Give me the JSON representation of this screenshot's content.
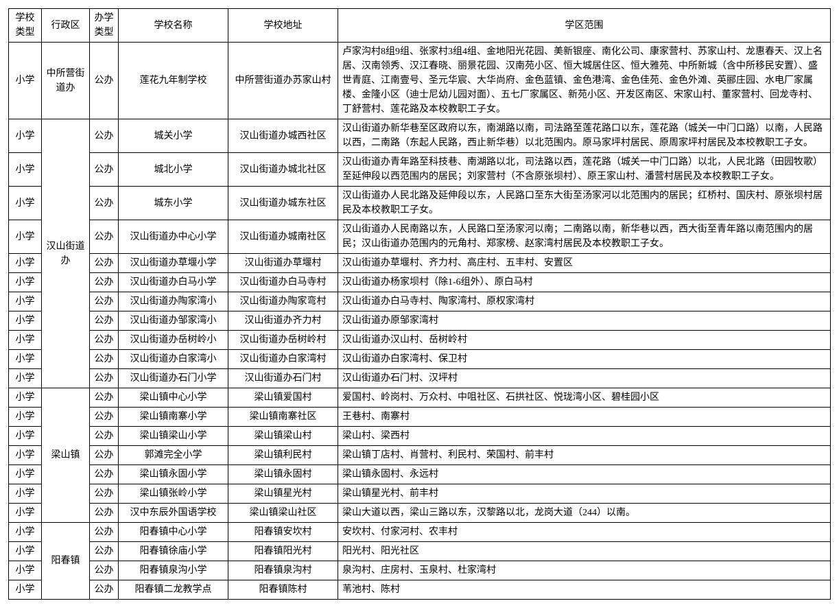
{
  "headers": {
    "school_type": "学校类型",
    "admin_area": "行政区",
    "run_type": "办学类型",
    "school_name": "学校名称",
    "school_addr": "学校地址",
    "scope": "学区范围"
  },
  "admin_groups": {
    "zsy": "中所营街道办",
    "hs": "汉山街道办",
    "ls": "梁山镇",
    "yc": "阳春镇"
  },
  "rows": [
    {
      "type": "小学",
      "run": "公办",
      "name": "莲花九年制学校",
      "addr": "中所营街道办苏家山村",
      "scope": "卢家沟村8组9组、张家村3组4组、金地阳光花园、美新银座、南化公司、康家营村、苏家山村、龙惠春天、汉上名居、汉南领秀、汉江春晓、丽景花园、汉南苑小区、恒大城居住区、恒大雅苑、中所新城（含中所移民安置）、盛世青庭、江南壹号、圣元华宸、大华尚府、金色蓝镇、金色港湾、金色佳苑、金色外滩、英郦庄园、水电厂家属楼、金隆小区（迪士尼幼儿园对面）、五七厂家属区、新苑小区、开发区南区、宋家山村、董家营村、回龙寺村、丁舒营村、莲花路及本校教职工子女。"
    },
    {
      "type": "小学",
      "run": "公办",
      "name": "城关小学",
      "addr": "汉山街道办城西社区",
      "scope": "汉山街道办新华巷至区政府以东，南湖路以南，司法路至莲花路口以东，莲花路（城关一中门口路）以南，人民路以西，二南路（东起人民路，西止新华巷）以北范围内。原马家坪村居民、原周家坪村居民及本校教职工子女。"
    },
    {
      "type": "小学",
      "run": "公办",
      "name": "城北小学",
      "addr": "汉山街道办城北社区",
      "scope": "汉山街道办青年路至科技巷、南湖路以北，司法路以西，莲花路（城关一中门口路）以北，人民北路（田园牧歌）至延伸段以西范围内的居民；刘家营村（不含原张坝村）、原王家山村、潘营村居民及本校教职工子女。"
    },
    {
      "type": "小学",
      "run": "公办",
      "name": "城东小学",
      "addr": "汉山街道办城东社区",
      "scope": "汉山街道办人民北路及延伸段以东，人民路口至东大街至汤家河以北范围内的居民；红桥村、国庆村、原张坝村居民及本校教职工子女。"
    },
    {
      "type": "小学",
      "run": "公办",
      "name": "汉山街道办中心小学",
      "addr": "汉山街道办城南社区",
      "scope": "汉山街道办人民南路以东，人民路口至汤家河以南；二南路以南，新华巷以西，西大街至青年路以南范围内的居民；汉山街道办范围内的元角村、郑家榜、赵家湾村居民及本校教职工子女。"
    },
    {
      "type": "小学",
      "run": "公办",
      "name": "汉山街道办草堰小学",
      "addr": "汉山街道办草堰村",
      "scope": "汉山街道办草堰村、齐力村、高庄村、五丰村、安置区"
    },
    {
      "type": "小学",
      "run": "公办",
      "name": "汉山街道办白马小学",
      "addr": "汉山街道办白马寺村",
      "scope": "汉山街道办杨家坝村（除1-6组外）、原白马村"
    },
    {
      "type": "小学",
      "run": "公办",
      "name": "汉山街道办陶家湾小",
      "addr": "汉山街道办陶家弯村",
      "scope": "汉山街道办白马寺村、陶家湾村、原权家湾村"
    },
    {
      "type": "小学",
      "run": "公办",
      "name": "汉山街道办邹家湾小",
      "addr": "汉山街道办齐力村",
      "scope": "汉山街道办原邹家湾村"
    },
    {
      "type": "小学",
      "run": "公办",
      "name": "汉山街道办岳树岭小",
      "addr": "汉山街道办岳树岭村",
      "scope": "汉山街道办汉山村、岳树岭村"
    },
    {
      "type": "小学",
      "run": "公办",
      "name": "汉山街道办白家湾小",
      "addr": "汉山街道办白家湾村",
      "scope": "汉山街道办白家湾村、保卫村"
    },
    {
      "type": "小学",
      "run": "公办",
      "name": "汉山街道办石门小学",
      "addr": "汉山街道办石门村",
      "scope": "汉山街道办石门村、汉坪村"
    },
    {
      "type": "小学",
      "run": "公办",
      "name": "梁山镇中心小学",
      "addr": "梁山镇爱国村",
      "scope": "爱国村、岭岗村、万众村、中咀社区、石拱社区、悦珑湾小区、碧桂园小区"
    },
    {
      "type": "小学",
      "run": "公办",
      "name": "梁山镇南寨小学",
      "addr": "梁山镇南寨社区",
      "scope": "王巷村、南寨村"
    },
    {
      "type": "小学",
      "run": "公办",
      "name": "梁山镇梁山小学",
      "addr": "梁山镇梁山村",
      "scope": "梁山村、梁西村"
    },
    {
      "type": "小学",
      "run": "公办",
      "name": "郭滩完全小学",
      "addr": "梁山镇利民村",
      "scope": "梁山镇丁店村、肖营村、利民村、荣国村、前丰村"
    },
    {
      "type": "小学",
      "run": "公办",
      "name": "梁山镇永固小学",
      "addr": "梁山镇永固村",
      "scope": "梁山镇永固村、永远村"
    },
    {
      "type": "小学",
      "run": "公办",
      "name": "梁山镇张岭小学",
      "addr": "梁山镇星光村",
      "scope": "梁山镇星光村、前丰村"
    },
    {
      "type": "小学",
      "run": "公办",
      "name": "汉中东辰外国语学校",
      "addr": "梁山镇梁山社区",
      "scope": "梁山大道以西，梁山三路以东，汉黎路以北，龙岗大道（244）以南。"
    },
    {
      "type": "小学",
      "run": "公办",
      "name": "阳春镇中心小学",
      "addr": "阳春镇安坎村",
      "scope": "安坎村、付家河村、农丰村"
    },
    {
      "type": "小学",
      "run": "公办",
      "name": "阳春镇徐庙小学",
      "addr": "阳春镇阳光村",
      "scope": "阳光村、阳光社区"
    },
    {
      "type": "小学",
      "run": "公办",
      "name": "阳春镇泉沟小学",
      "addr": "阳春镇泉沟村",
      "scope": "泉沟村、庄房村、玉泉村、杜家湾村"
    },
    {
      "type": "小学",
      "run": "公办",
      "name": "阳春镇二龙教学点",
      "addr": "阳春镇陈村",
      "scope": "苇池村、陈村"
    }
  ]
}
